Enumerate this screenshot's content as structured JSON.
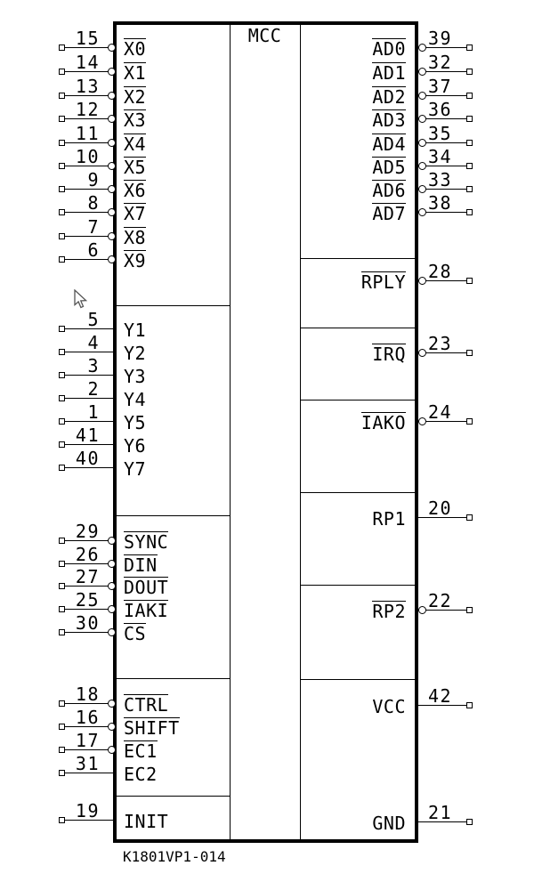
{
  "title": "MCC",
  "caption": "K1801VP1-014",
  "colors": {
    "line": "#000000",
    "background": "#ffffff"
  },
  "left_groups": [
    {
      "pins": [
        {
          "number": "15",
          "label": "X0",
          "inverted": true
        },
        {
          "number": "14",
          "label": "X1",
          "inverted": true
        },
        {
          "number": "13",
          "label": "X2",
          "inverted": true
        },
        {
          "number": "12",
          "label": "X3",
          "inverted": true
        },
        {
          "number": "11",
          "label": "X4",
          "inverted": true
        },
        {
          "number": "10",
          "label": "X5",
          "inverted": true
        },
        {
          "number": "9",
          "label": "X6",
          "inverted": true
        },
        {
          "number": "8",
          "label": "X7",
          "inverted": true
        },
        {
          "number": "7",
          "label": "X8",
          "inverted": true
        },
        {
          "number": "6",
          "label": "X9",
          "inverted": true
        }
      ]
    },
    {
      "pins": [
        {
          "number": "5",
          "label": "Y1",
          "inverted": false
        },
        {
          "number": "4",
          "label": "Y2",
          "inverted": false
        },
        {
          "number": "3",
          "label": "Y3",
          "inverted": false
        },
        {
          "number": "2",
          "label": "Y4",
          "inverted": false
        },
        {
          "number": "1",
          "label": "Y5",
          "inverted": false
        },
        {
          "number": "41",
          "label": "Y6",
          "inverted": false
        },
        {
          "number": "40",
          "label": "Y7",
          "inverted": false
        }
      ]
    },
    {
      "pins": [
        {
          "number": "29",
          "label": "SYNC",
          "inverted": true
        },
        {
          "number": "26",
          "label": "DIN",
          "inverted": true
        },
        {
          "number": "27",
          "label": "DOUT",
          "inverted": true
        },
        {
          "number": "25",
          "label": "IAKI",
          "inverted": true
        },
        {
          "number": "30",
          "label": "CS",
          "inverted": true
        }
      ]
    },
    {
      "pins": [
        {
          "number": "18",
          "label": "CTRL",
          "inverted": true
        },
        {
          "number": "16",
          "label": "SHIFT",
          "inverted": true
        },
        {
          "number": "17",
          "label": "EC1",
          "inverted": true
        },
        {
          "number": "31",
          "label": "EC2",
          "inverted": false
        }
      ]
    },
    {
      "pins": [
        {
          "number": "19",
          "label": "INIT",
          "inverted": false
        }
      ]
    }
  ],
  "right_groups": [
    {
      "pins": [
        {
          "number": "39",
          "label": "AD0",
          "inverted": true
        },
        {
          "number": "32",
          "label": "AD1",
          "inverted": true
        },
        {
          "number": "37",
          "label": "AD2",
          "inverted": true
        },
        {
          "number": "36",
          "label": "AD3",
          "inverted": true
        },
        {
          "number": "35",
          "label": "AD4",
          "inverted": true
        },
        {
          "number": "34",
          "label": "AD5",
          "inverted": true
        },
        {
          "number": "33",
          "label": "AD6",
          "inverted": true
        },
        {
          "number": "38",
          "label": "AD7",
          "inverted": true
        }
      ]
    },
    {
      "pins": [
        {
          "number": "28",
          "label": "RPLY",
          "inverted": true
        }
      ]
    },
    {
      "pins": [
        {
          "number": "23",
          "label": "IRQ",
          "inverted": true
        }
      ]
    },
    {
      "pins": [
        {
          "number": "24",
          "label": "IAKO",
          "inverted": true
        }
      ]
    },
    {
      "pins": [
        {
          "number": "20",
          "label": "RP1",
          "inverted": false
        }
      ]
    },
    {
      "pins": [
        {
          "number": "22",
          "label": "RP2",
          "inverted": true
        }
      ]
    },
    {
      "pins": [
        {
          "number": "42",
          "label": "VCC",
          "inverted": false
        },
        {
          "number": "21",
          "label": "GND",
          "inverted": false
        }
      ]
    }
  ]
}
